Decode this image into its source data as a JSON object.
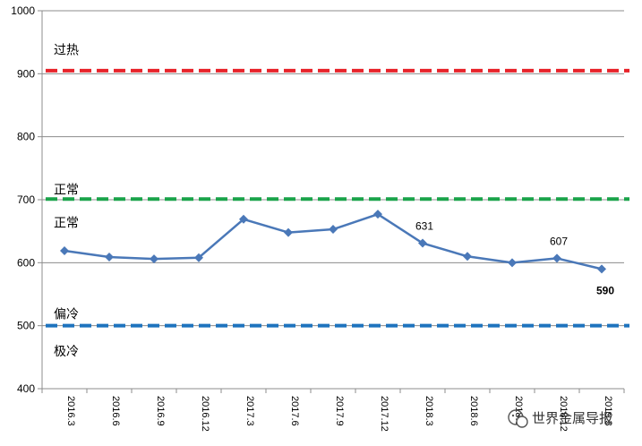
{
  "chart_data": {
    "type": "line",
    "categories": [
      "2016.3",
      "2016.6",
      "2016.9",
      "2016.12",
      "2017.3",
      "2017.6",
      "2017.9",
      "2017.12",
      "2018.3",
      "2018.6",
      "2018.9",
      "2018.12",
      "2019.3"
    ],
    "series": [
      {
        "values": [
          619,
          609,
          606,
          608,
          669,
          648,
          653,
          677,
          631,
          610,
          600,
          607,
          590
        ],
        "color": "#4a78b8"
      }
    ],
    "data_labels": [
      {
        "index": 8,
        "text": "631",
        "bold": false
      },
      {
        "index": 11,
        "text": "607",
        "bold": false
      },
      {
        "index": 12,
        "text": "590",
        "bold": true
      }
    ],
    "ylim": [
      400,
      1000
    ],
    "yticks": [
      "400",
      "500",
      "600",
      "700",
      "800",
      "900",
      "1000"
    ],
    "grid": true,
    "threshold_lines": [
      {
        "value": 905,
        "color": "#e8232a"
      },
      {
        "value": 701,
        "color": "#1aa34a"
      },
      {
        "value": 500,
        "color": "#1e73be"
      }
    ],
    "zone_labels": [
      {
        "text": "过热",
        "value": 938
      },
      {
        "text": "正常",
        "value": 716
      },
      {
        "text": "正常",
        "value": 664
      },
      {
        "text": "偏冷",
        "value": 519
      },
      {
        "text": "极冷",
        "value": 460
      }
    ],
    "xlabel": "",
    "ylabel": "",
    "title": ""
  },
  "watermark": {
    "text": "世界金属导报",
    "icon": "wechat-icon"
  }
}
